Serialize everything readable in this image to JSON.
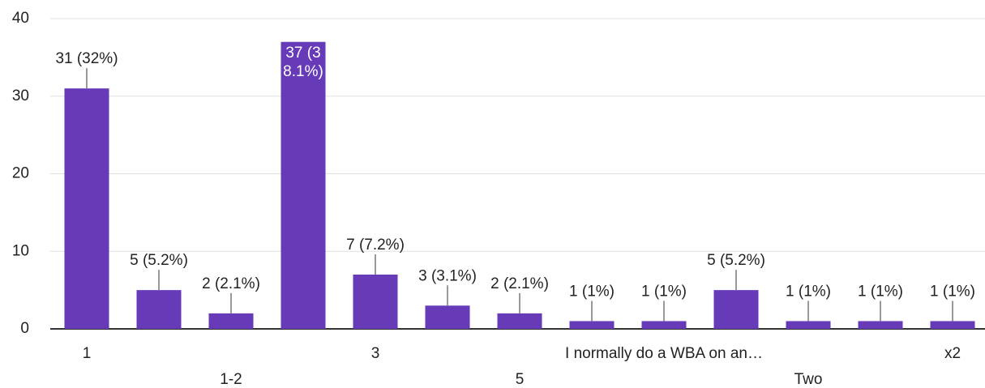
{
  "chart_data": {
    "type": "bar",
    "categories": [
      "1",
      null,
      "1-2",
      null,
      "3",
      null,
      "5",
      null,
      "I normally do a WBA on an…",
      null,
      "Two",
      null,
      "x2"
    ],
    "values": [
      31,
      5,
      2,
      37,
      7,
      3,
      2,
      1,
      1,
      5,
      1,
      1,
      1
    ],
    "value_labels": [
      "31 (32%)",
      "5 (5.2%)",
      "2 (2.1%)",
      "37 (38.1%)",
      "7 (7.2%)",
      "3 (3.1%)",
      "2 (2.1%)",
      "1 (1%)",
      "1 (1%)",
      "5 (5.2%)",
      "1 (1%)",
      "1 (1%)",
      "1 (1%)"
    ],
    "color": "#673ab7",
    "ylim": [
      0,
      40
    ],
    "yticks": [
      0,
      10,
      20,
      30,
      40
    ],
    "grid": true
  }
}
